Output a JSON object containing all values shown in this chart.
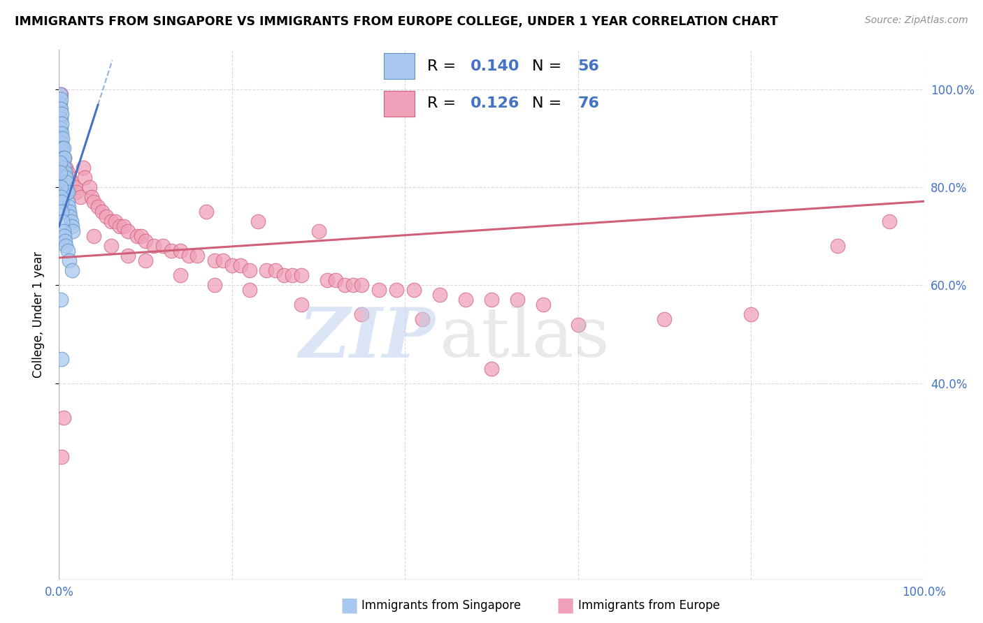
{
  "title": "IMMIGRANTS FROM SINGAPORE VS IMMIGRANTS FROM EUROPE COLLEGE, UNDER 1 YEAR CORRELATION CHART",
  "source": "Source: ZipAtlas.com",
  "ylabel": "College, Under 1 year",
  "legend_r1_val": "0.140",
  "legend_n1_val": "56",
  "legend_r2_val": "0.126",
  "legend_n2_val": "76",
  "blue_fill": "#A8C8F0",
  "blue_edge": "#6090C0",
  "pink_fill": "#F0A0B8",
  "pink_edge": "#D06080",
  "blue_line_color": "#4472C4",
  "pink_line_color": "#D0607A",
  "accent_blue": "#4472C4",
  "grid_color": "#D8D8E8",
  "watermark_zip_color": "#C0D0F0",
  "watermark_atlas_color": "#C8C8C8",
  "sing_x": [
    0.001,
    0.001,
    0.001,
    0.001,
    0.001,
    0.002,
    0.002,
    0.002,
    0.002,
    0.002,
    0.002,
    0.003,
    0.003,
    0.003,
    0.003,
    0.003,
    0.004,
    0.004,
    0.004,
    0.004,
    0.005,
    0.005,
    0.005,
    0.006,
    0.006,
    0.006,
    0.007,
    0.007,
    0.008,
    0.008,
    0.009,
    0.009,
    0.01,
    0.01,
    0.011,
    0.012,
    0.013,
    0.014,
    0.015,
    0.016,
    0.001,
    0.001,
    0.002,
    0.002,
    0.003,
    0.003,
    0.004,
    0.005,
    0.006,
    0.007,
    0.008,
    0.01,
    0.012,
    0.015,
    0.002,
    0.003
  ],
  "sing_y": [
    0.99,
    0.97,
    0.96,
    0.94,
    0.92,
    0.98,
    0.96,
    0.94,
    0.92,
    0.9,
    0.88,
    0.95,
    0.93,
    0.91,
    0.89,
    0.87,
    0.9,
    0.88,
    0.86,
    0.84,
    0.88,
    0.86,
    0.84,
    0.86,
    0.84,
    0.82,
    0.83,
    0.81,
    0.8,
    0.82,
    0.79,
    0.81,
    0.77,
    0.79,
    0.76,
    0.75,
    0.74,
    0.73,
    0.72,
    0.71,
    0.85,
    0.83,
    0.8,
    0.78,
    0.77,
    0.75,
    0.73,
    0.71,
    0.7,
    0.69,
    0.68,
    0.67,
    0.65,
    0.63,
    0.57,
    0.45
  ],
  "euro_x": [
    0.002,
    0.004,
    0.006,
    0.008,
    0.01,
    0.012,
    0.015,
    0.018,
    0.02,
    0.025,
    0.028,
    0.03,
    0.035,
    0.038,
    0.04,
    0.045,
    0.05,
    0.055,
    0.06,
    0.065,
    0.07,
    0.075,
    0.08,
    0.09,
    0.095,
    0.1,
    0.11,
    0.12,
    0.13,
    0.14,
    0.15,
    0.16,
    0.17,
    0.18,
    0.19,
    0.2,
    0.21,
    0.22,
    0.23,
    0.24,
    0.25,
    0.26,
    0.27,
    0.28,
    0.3,
    0.31,
    0.32,
    0.33,
    0.34,
    0.35,
    0.37,
    0.39,
    0.41,
    0.44,
    0.47,
    0.5,
    0.53,
    0.56,
    0.04,
    0.06,
    0.08,
    0.1,
    0.14,
    0.18,
    0.22,
    0.28,
    0.35,
    0.42,
    0.5,
    0.6,
    0.7,
    0.8,
    0.9,
    0.96,
    0.005,
    0.003
  ],
  "euro_y": [
    0.99,
    0.88,
    0.86,
    0.84,
    0.83,
    0.82,
    0.81,
    0.8,
    0.79,
    0.78,
    0.84,
    0.82,
    0.8,
    0.78,
    0.77,
    0.76,
    0.75,
    0.74,
    0.73,
    0.73,
    0.72,
    0.72,
    0.71,
    0.7,
    0.7,
    0.69,
    0.68,
    0.68,
    0.67,
    0.67,
    0.66,
    0.66,
    0.75,
    0.65,
    0.65,
    0.64,
    0.64,
    0.63,
    0.73,
    0.63,
    0.63,
    0.62,
    0.62,
    0.62,
    0.71,
    0.61,
    0.61,
    0.6,
    0.6,
    0.6,
    0.59,
    0.59,
    0.59,
    0.58,
    0.57,
    0.57,
    0.57,
    0.56,
    0.7,
    0.68,
    0.66,
    0.65,
    0.62,
    0.6,
    0.59,
    0.56,
    0.54,
    0.53,
    0.43,
    0.52,
    0.53,
    0.54,
    0.68,
    0.73,
    0.33,
    0.25
  ],
  "sing_line_x0": 0.0,
  "sing_line_y0": 0.72,
  "sing_line_slope": 5.5,
  "sing_line_xsolid_end": 0.045,
  "sing_line_xdash_end": 0.28,
  "euro_line_x0": 0.0,
  "euro_line_y0": 0.656,
  "euro_line_slope": 0.115,
  "euro_line_x1": 1.0,
  "xlim": [
    0.0,
    1.0
  ],
  "ylim": [
    0.0,
    1.08
  ],
  "xticks": [
    0.0,
    0.2,
    0.4,
    0.6,
    0.8,
    1.0
  ],
  "yticks_right": [
    0.4,
    0.6,
    0.8,
    1.0
  ],
  "ytick_labels_right": [
    "40.0%",
    "60.0%",
    "80.0%",
    "100.0%"
  ]
}
